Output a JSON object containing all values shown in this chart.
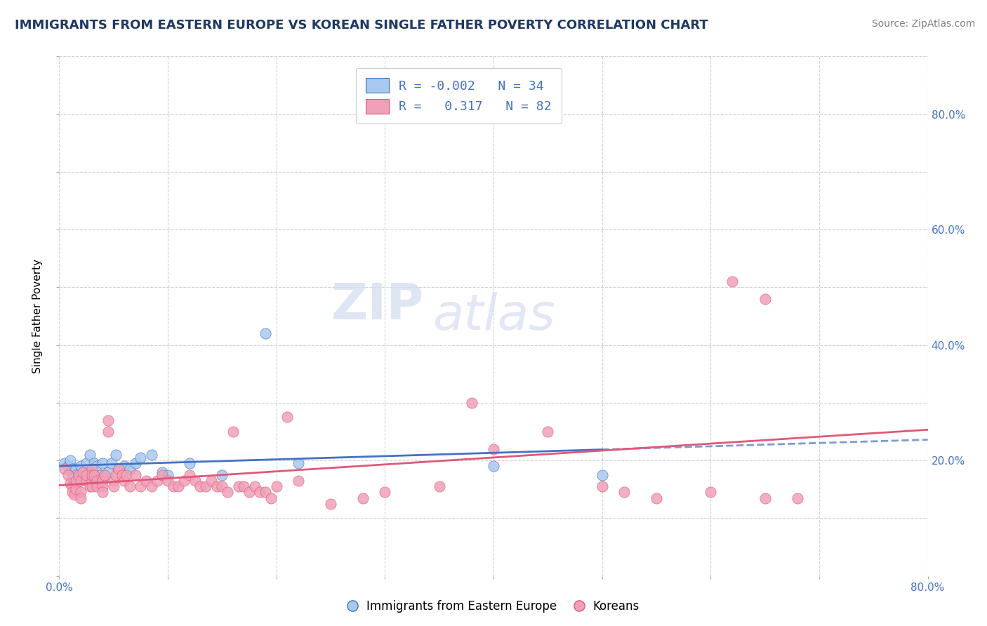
{
  "title": "IMMIGRANTS FROM EASTERN EUROPE VS KOREAN SINGLE FATHER POVERTY CORRELATION CHART",
  "source": "Source: ZipAtlas.com",
  "ylabel": "Single Father Poverty",
  "legend_label1": "Immigrants from Eastern Europe",
  "legend_label2": "Koreans",
  "r1": "-0.002",
  "n1": "34",
  "r2": "0.317",
  "n2": "82",
  "blue_color": "#A8C8EE",
  "pink_color": "#F0A0B8",
  "blue_line_color": "#4472C4",
  "pink_line_color": "#E05878",
  "title_color": "#1F3864",
  "legend_text_color": "#4472C4",
  "axis_color": "#4472C4",
  "blue_scatter": [
    [
      0.005,
      0.195
    ],
    [
      0.008,
      0.19
    ],
    [
      0.01,
      0.2
    ],
    [
      0.012,
      0.185
    ],
    [
      0.015,
      0.185
    ],
    [
      0.015,
      0.175
    ],
    [
      0.012,
      0.17
    ],
    [
      0.018,
      0.165
    ],
    [
      0.02,
      0.19
    ],
    [
      0.025,
      0.195
    ],
    [
      0.028,
      0.21
    ],
    [
      0.03,
      0.18
    ],
    [
      0.032,
      0.195
    ],
    [
      0.035,
      0.19
    ],
    [
      0.038,
      0.175
    ],
    [
      0.04,
      0.195
    ],
    [
      0.042,
      0.175
    ],
    [
      0.045,
      0.18
    ],
    [
      0.048,
      0.195
    ],
    [
      0.052,
      0.21
    ],
    [
      0.055,
      0.185
    ],
    [
      0.06,
      0.19
    ],
    [
      0.065,
      0.185
    ],
    [
      0.07,
      0.195
    ],
    [
      0.075,
      0.205
    ],
    [
      0.085,
      0.21
    ],
    [
      0.095,
      0.18
    ],
    [
      0.1,
      0.175
    ],
    [
      0.12,
      0.195
    ],
    [
      0.15,
      0.175
    ],
    [
      0.19,
      0.42
    ],
    [
      0.22,
      0.195
    ],
    [
      0.4,
      0.19
    ],
    [
      0.5,
      0.175
    ]
  ],
  "pink_scatter": [
    [
      0.005,
      0.185
    ],
    [
      0.008,
      0.175
    ],
    [
      0.01,
      0.16
    ],
    [
      0.012,
      0.155
    ],
    [
      0.012,
      0.145
    ],
    [
      0.014,
      0.14
    ],
    [
      0.015,
      0.15
    ],
    [
      0.015,
      0.165
    ],
    [
      0.018,
      0.175
    ],
    [
      0.02,
      0.165
    ],
    [
      0.02,
      0.145
    ],
    [
      0.02,
      0.135
    ],
    [
      0.022,
      0.18
    ],
    [
      0.025,
      0.165
    ],
    [
      0.025,
      0.175
    ],
    [
      0.028,
      0.155
    ],
    [
      0.03,
      0.165
    ],
    [
      0.03,
      0.185
    ],
    [
      0.03,
      0.175
    ],
    [
      0.03,
      0.155
    ],
    [
      0.032,
      0.175
    ],
    [
      0.035,
      0.165
    ],
    [
      0.035,
      0.155
    ],
    [
      0.04,
      0.17
    ],
    [
      0.04,
      0.165
    ],
    [
      0.04,
      0.155
    ],
    [
      0.04,
      0.145
    ],
    [
      0.042,
      0.175
    ],
    [
      0.045,
      0.27
    ],
    [
      0.045,
      0.25
    ],
    [
      0.05,
      0.165
    ],
    [
      0.05,
      0.155
    ],
    [
      0.052,
      0.175
    ],
    [
      0.055,
      0.185
    ],
    [
      0.058,
      0.175
    ],
    [
      0.06,
      0.165
    ],
    [
      0.062,
      0.175
    ],
    [
      0.065,
      0.155
    ],
    [
      0.07,
      0.175
    ],
    [
      0.075,
      0.155
    ],
    [
      0.08,
      0.165
    ],
    [
      0.085,
      0.155
    ],
    [
      0.09,
      0.165
    ],
    [
      0.095,
      0.175
    ],
    [
      0.1,
      0.165
    ],
    [
      0.105,
      0.155
    ],
    [
      0.11,
      0.155
    ],
    [
      0.115,
      0.165
    ],
    [
      0.12,
      0.175
    ],
    [
      0.125,
      0.165
    ],
    [
      0.13,
      0.155
    ],
    [
      0.135,
      0.155
    ],
    [
      0.14,
      0.165
    ],
    [
      0.145,
      0.155
    ],
    [
      0.15,
      0.155
    ],
    [
      0.155,
      0.145
    ],
    [
      0.16,
      0.25
    ],
    [
      0.165,
      0.155
    ],
    [
      0.17,
      0.155
    ],
    [
      0.175,
      0.145
    ],
    [
      0.18,
      0.155
    ],
    [
      0.185,
      0.145
    ],
    [
      0.19,
      0.145
    ],
    [
      0.195,
      0.135
    ],
    [
      0.2,
      0.155
    ],
    [
      0.21,
      0.275
    ],
    [
      0.22,
      0.165
    ],
    [
      0.25,
      0.125
    ],
    [
      0.28,
      0.135
    ],
    [
      0.3,
      0.145
    ],
    [
      0.35,
      0.155
    ],
    [
      0.38,
      0.3
    ],
    [
      0.4,
      0.22
    ],
    [
      0.45,
      0.25
    ],
    [
      0.5,
      0.155
    ],
    [
      0.52,
      0.145
    ],
    [
      0.55,
      0.135
    ],
    [
      0.6,
      0.145
    ],
    [
      0.65,
      0.135
    ],
    [
      0.68,
      0.135
    ],
    [
      0.62,
      0.51
    ],
    [
      0.65,
      0.48
    ]
  ],
  "xlim": [
    0.0,
    0.8
  ],
  "ylim": [
    0.0,
    0.9
  ],
  "xticks": [
    0.0,
    0.1,
    0.2,
    0.3,
    0.4,
    0.5,
    0.6,
    0.7,
    0.8
  ],
  "yticks": [
    0.0,
    0.1,
    0.2,
    0.3,
    0.4,
    0.5,
    0.6,
    0.7,
    0.8,
    0.9
  ],
  "yticks_right_labels": [
    "80.0%",
    "60.0%",
    "40.0%",
    "20.0%"
  ],
  "yticks_right_vals": [
    0.8,
    0.6,
    0.4,
    0.2
  ],
  "xtick_labels": [
    "0.0%",
    "",
    "",
    "",
    "",
    "",
    "",
    "",
    "80.0%"
  ]
}
